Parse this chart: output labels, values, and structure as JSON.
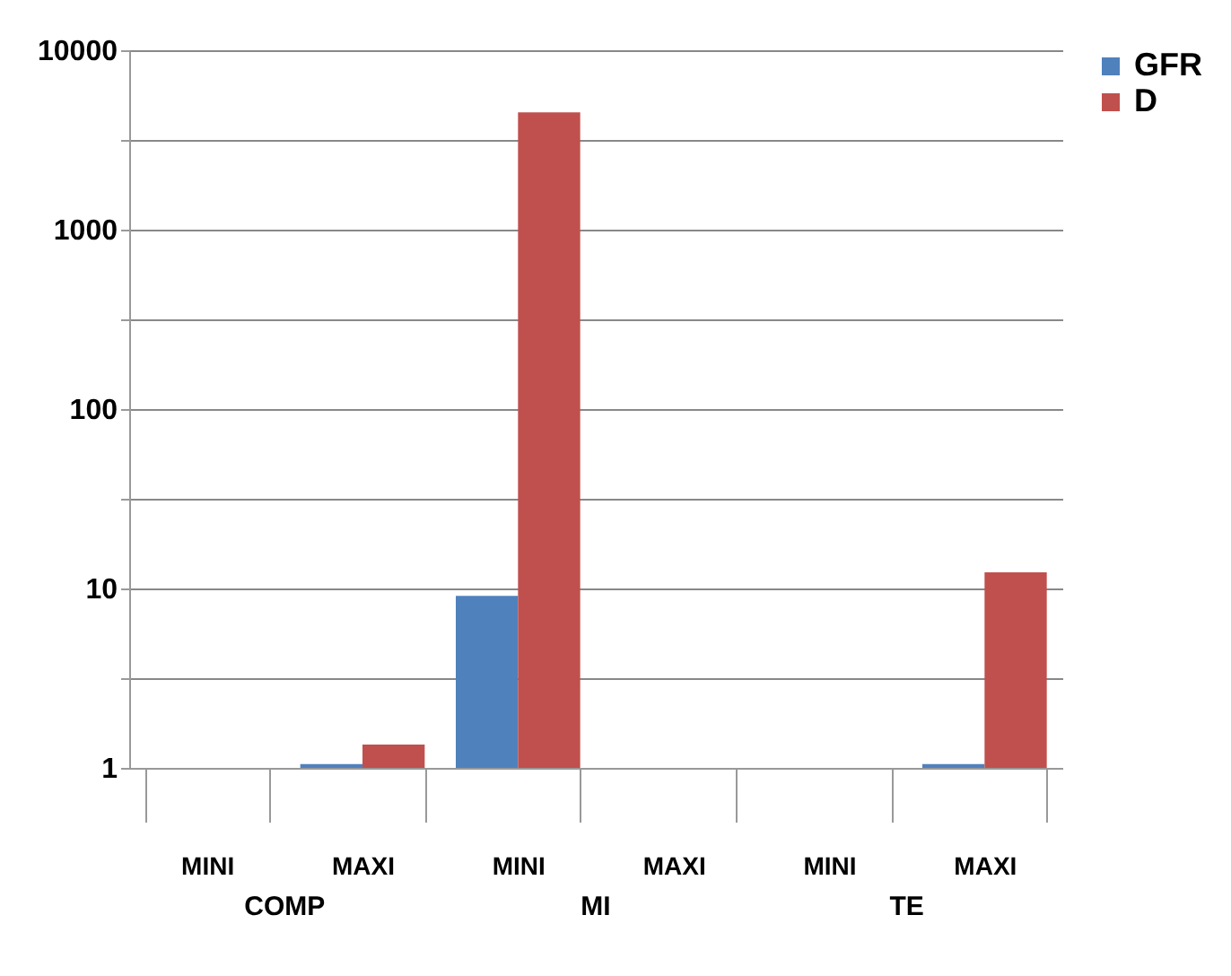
{
  "chart_data": {
    "type": "bar",
    "categories": [
      "MINI",
      "MAXI",
      "MINI",
      "MAXI",
      "MINI",
      "MAXI"
    ],
    "series": [
      {
        "name": "GFR",
        "color": "#4f81bd",
        "values": [
          null,
          1.05,
          9.1,
          null,
          null,
          1.05
        ]
      },
      {
        "name": "D",
        "color": "#c0504d",
        "values": [
          null,
          1.35,
          4500,
          null,
          null,
          12.3
        ]
      }
    ],
    "annotations": [
      "COMP",
      "MI",
      "TE"
    ],
    "log": "y",
    "ylim": [
      1,
      10000
    ],
    "yticks": [
      1,
      {
        "value": 3.16,
        "label": null
      },
      10,
      {
        "value": 31.6,
        "label": null
      },
      100,
      {
        "value": 316,
        "label": null
      },
      1000,
      {
        "value": 3160,
        "label": null
      },
      10000
    ],
    "grid": "y",
    "legend": "right"
  }
}
